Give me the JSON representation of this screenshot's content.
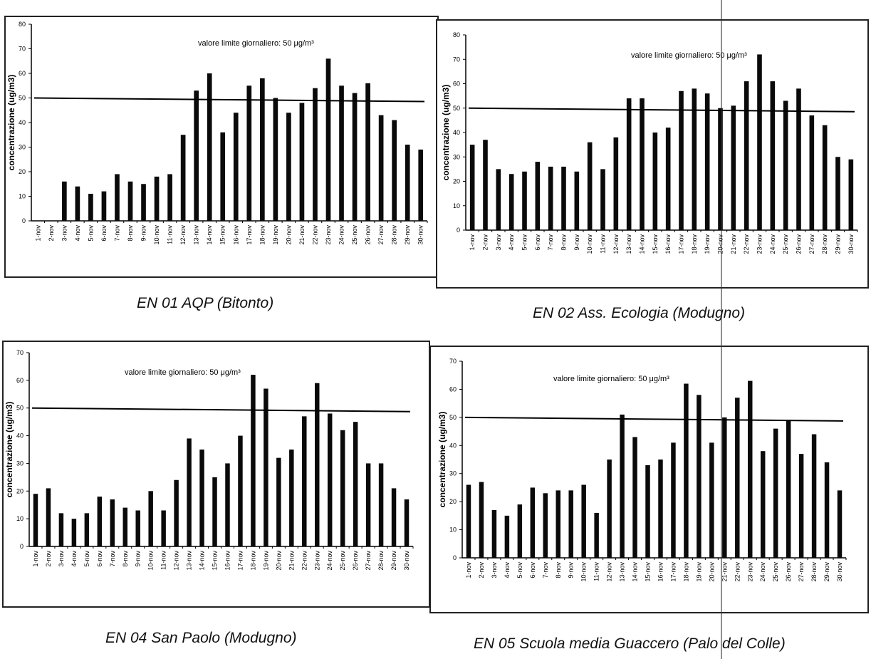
{
  "charts": [
    {
      "caption": "EN 01 AQP (Bitonto)",
      "annotation": "valore limite giornaliero: 50 μg/m³",
      "ylabel": "concentrazione (ug/m3)",
      "chart_data": {
        "type": "bar",
        "title": "",
        "ylabel": "concentrazione (ug/m3)",
        "ylim": [
          0,
          80
        ],
        "yticks": [
          0,
          10,
          20,
          30,
          40,
          50,
          60,
          70,
          80
        ],
        "limit_value": 50,
        "categories": [
          "1-nov",
          "2-nov",
          "3-nov",
          "4-nov",
          "5-nov",
          "6-nov",
          "7-nov",
          "8-nov",
          "9-nov",
          "10-nov",
          "11-nov",
          "12-nov",
          "13-nov",
          "14-nov",
          "15-nov",
          "16-nov",
          "17-nov",
          "18-nov",
          "19-nov",
          "20-nov",
          "21-nov",
          "22-nov",
          "23-nov",
          "24-nov",
          "25-nov",
          "26-nov",
          "27-nov",
          "28-nov",
          "29-nov",
          "30-nov"
        ],
        "values": [
          0,
          0,
          16,
          14,
          11,
          12,
          19,
          16,
          15,
          18,
          19,
          35,
          53,
          60,
          36,
          44,
          55,
          58,
          50,
          44,
          48,
          54,
          66,
          55,
          52,
          56,
          43,
          41,
          31,
          29
        ]
      }
    },
    {
      "caption": "EN 02 Ass. Ecologia (Modugno)",
      "annotation": "valore limite giornaliero: 50 μg/m³",
      "ylabel": "concentrazione (ug/m3)",
      "chart_data": {
        "type": "bar",
        "title": "",
        "ylabel": "concentrazione (ug/m3)",
        "ylim": [
          0,
          80
        ],
        "yticks": [
          0,
          10,
          20,
          30,
          40,
          50,
          60,
          70,
          80
        ],
        "limit_value": 50,
        "categories": [
          "1-nov",
          "2-nov",
          "3-nov",
          "4-nov",
          "5-nov",
          "6-nov",
          "7-nov",
          "8-nov",
          "9-nov",
          "10-nov",
          "11-nov",
          "12-nov",
          "13-nov",
          "14-nov",
          "15-nov",
          "16-nov",
          "17-nov",
          "18-nov",
          "19-nov",
          "20-nov",
          "21-nov",
          "22-nov",
          "23-nov",
          "24-nov",
          "25-nov",
          "26-nov",
          "27-nov",
          "28-nov",
          "29-nov",
          "30-nov"
        ],
        "values": [
          35,
          37,
          25,
          23,
          24,
          28,
          26,
          26,
          24,
          36,
          25,
          38,
          54,
          54,
          40,
          42,
          57,
          58,
          56,
          50,
          51,
          61,
          72,
          61,
          53,
          58,
          47,
          43,
          30,
          29
        ]
      }
    },
    {
      "caption": "EN 04 San Paolo (Modugno)",
      "annotation": "valore limite giornaliero: 50 μg/m³",
      "ylabel": "concentrazione (ug/m3)",
      "chart_data": {
        "type": "bar",
        "title": "",
        "ylabel": "concentrazione (ug/m3)",
        "ylim": [
          0,
          70
        ],
        "yticks": [
          0,
          10,
          20,
          30,
          40,
          50,
          60,
          70
        ],
        "limit_value": 50,
        "categories": [
          "1-nov",
          "2-nov",
          "3-nov",
          "4-nov",
          "5-nov",
          "6-nov",
          "7-nov",
          "8-nov",
          "9-nov",
          "10-nov",
          "11-nov",
          "12-nov",
          "13-nov",
          "14-nov",
          "15-nov",
          "16-nov",
          "17-nov",
          "18-nov",
          "19-nov",
          "20-nov",
          "21-nov",
          "22-nov",
          "23-nov",
          "24-nov",
          "25-nov",
          "26-nov",
          "27-nov",
          "28-nov",
          "29-nov",
          "30-nov"
        ],
        "values": [
          19,
          21,
          12,
          10,
          12,
          18,
          17,
          14,
          13,
          20,
          13,
          24,
          39,
          35,
          25,
          30,
          40,
          62,
          57,
          32,
          35,
          47,
          59,
          48,
          42,
          45,
          30,
          30,
          21,
          17
        ]
      }
    },
    {
      "caption": "EN 05 Scuola media Guaccero (Palo del Colle)",
      "annotation": "valore limite giornaliero: 50 μg/m³",
      "ylabel": "concentrazione (ug/m3)",
      "chart_data": {
        "type": "bar",
        "title": "",
        "ylabel": "concentrazione (ug/m3)",
        "ylim": [
          0,
          70
        ],
        "yticks": [
          0,
          10,
          20,
          30,
          40,
          50,
          60,
          70
        ],
        "limit_value": 50,
        "categories": [
          "1-nov",
          "2-nov",
          "3-nov",
          "4-nov",
          "5-nov",
          "6-nov",
          "7-nov",
          "8-nov",
          "9-nov",
          "10-nov",
          "11-nov",
          "12-nov",
          "13-nov",
          "14-nov",
          "15-nov",
          "16-nov",
          "17-nov",
          "18-nov",
          "19-nov",
          "20-nov",
          "21-nov",
          "22-nov",
          "23-nov",
          "24-nov",
          "25-nov",
          "26-nov",
          "27-nov",
          "28-nov",
          "29-nov",
          "30-nov"
        ],
        "values": [
          26,
          27,
          17,
          15,
          19,
          25,
          23,
          24,
          24,
          26,
          16,
          35,
          51,
          43,
          33,
          35,
          41,
          62,
          58,
          41,
          50,
          57,
          63,
          38,
          46,
          49,
          37,
          44,
          34,
          24
        ]
      }
    }
  ]
}
